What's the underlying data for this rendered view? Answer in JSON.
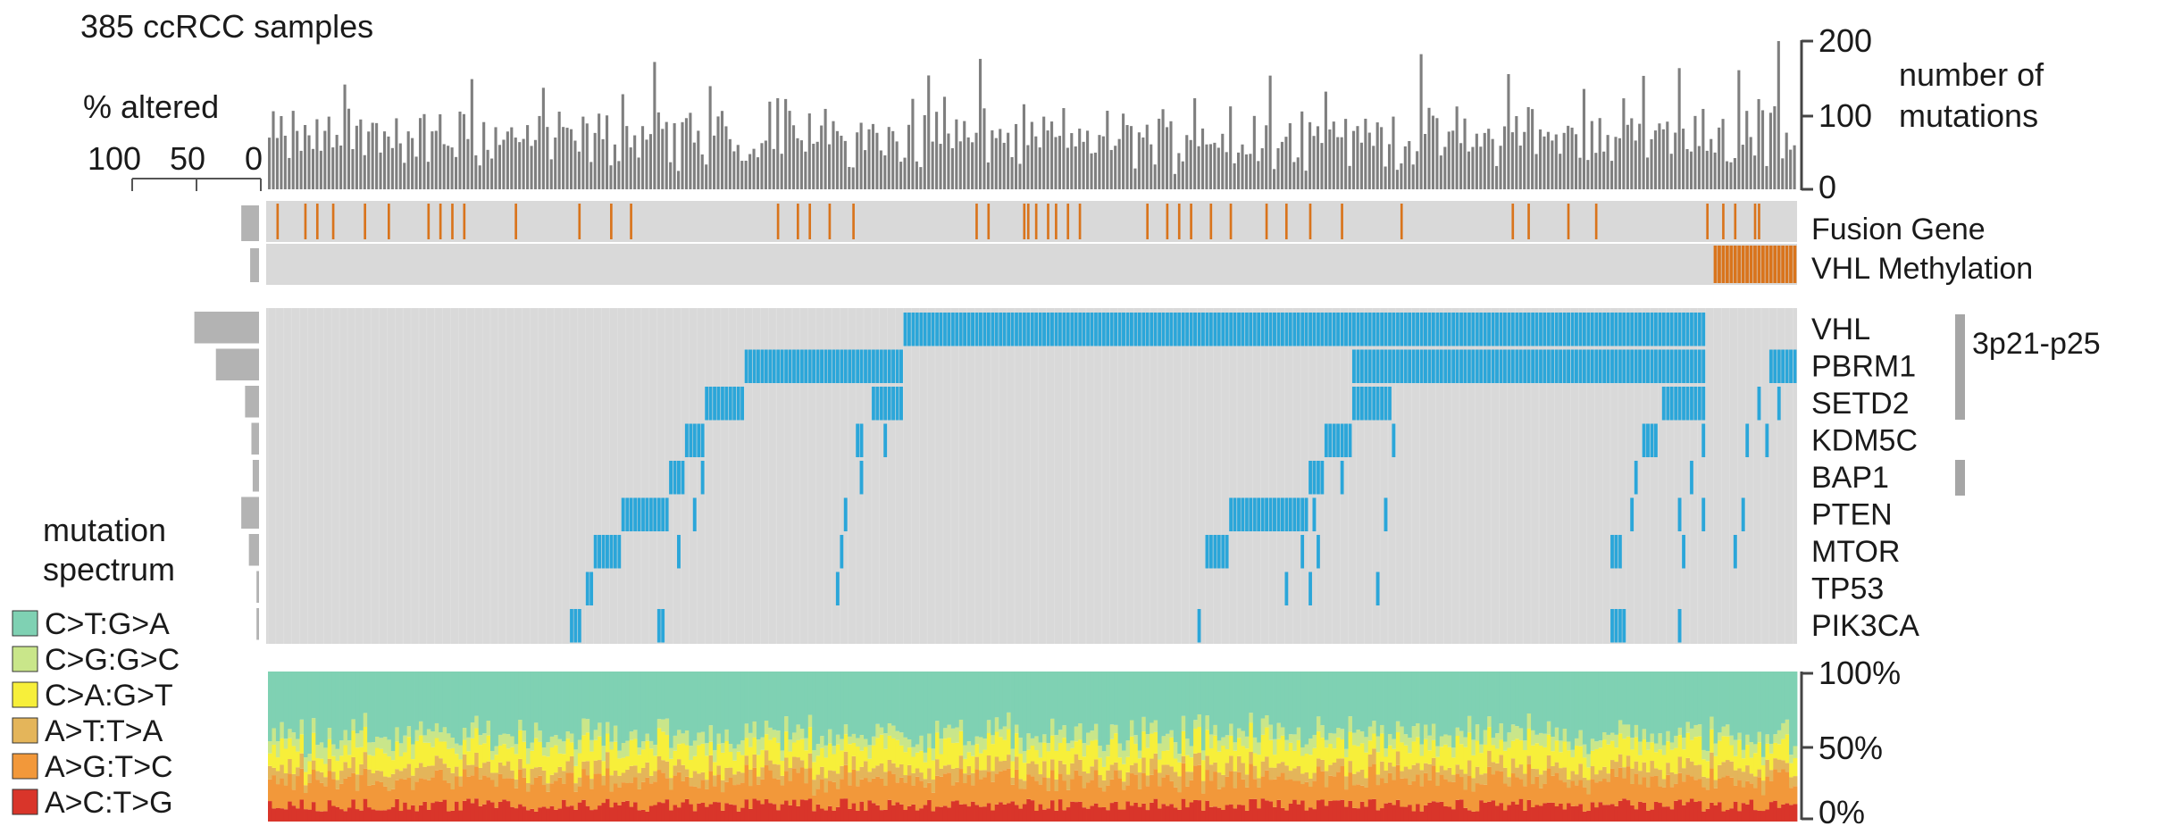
{
  "chart_data": [
    {
      "type": "bar",
      "title": "385 ccRCC samples",
      "ylabel": "number of mutations",
      "n_samples": 385,
      "ylim": [
        0,
        200
      ],
      "yticks": [
        "200",
        "100",
        "0"
      ],
      "summary_values": {
        "typical_min": 20,
        "typical_max": 140,
        "peak": 200
      },
      "bar_color": "#7f7f7f"
    },
    {
      "type": "heatmap",
      "title": "",
      "row_labels": [
        "Fusion Gene",
        "VHL Methylation",
        "VHL",
        "PBRM1",
        "SETD2",
        "KDM5C",
        "BAP1",
        "PTEN",
        "MTOR",
        "TP53",
        "PIK3CA"
      ],
      "percent_altered_axis": {
        "label": "% altered",
        "ticks": [
          "100",
          "50",
          "0"
        ]
      },
      "percent_altered": {
        "Fusion Gene": 14,
        "VHL Methylation": 7,
        "VHL": 51,
        "PBRM1": 34,
        "SETD2": 11,
        "KDM5C": 6,
        "BAP1": 5,
        "PTEN": 14,
        "MTOR": 8,
        "TP53": 2,
        "PIK3CA": 2
      },
      "cytoband_label": "3p21-p25",
      "colors": {
        "background": "#d9d9d9",
        "mutation": "#2ba6d9",
        "fusion": "#d9741c",
        "side_bar": "#b3b3b3",
        "cytoband": "#a6a6a6"
      }
    },
    {
      "type": "bar",
      "title": "",
      "legend_title": "mutation spectrum",
      "stacked": true,
      "ylim": [
        0,
        100
      ],
      "yticks": [
        "100%",
        "50%",
        "0%"
      ],
      "legend_position": "bottom-left",
      "series": [
        {
          "name": "C>T:G>A",
          "color": "#7fd1b3",
          "mean_fraction": 0.42
        },
        {
          "name": "C>G:G>C",
          "color": "#c9e68a",
          "mean_fraction": 0.08
        },
        {
          "name": "C>A:G>T",
          "color": "#f7ef3a",
          "mean_fraction": 0.14
        },
        {
          "name": "A>T:T>A",
          "color": "#e4b55a",
          "mean_fraction": 0.08
        },
        {
          "name": "A>G:T>C",
          "color": "#f2983a",
          "mean_fraction": 0.17
        },
        {
          "name": "A>C:T>G",
          "color": "#d9352a",
          "mean_fraction": 0.11
        }
      ]
    }
  ],
  "labels": {
    "title": "385 ccRCC samples",
    "pct_altered": "% altered",
    "pct_ticks": [
      "100",
      "50",
      "0"
    ],
    "mut_axis_label_1": "number of",
    "mut_axis_label_2": "mutations",
    "mut_ticks": [
      "200",
      "100",
      "0"
    ],
    "spectrum_title_1": "mutation",
    "spectrum_title_2": "spectrum",
    "spectrum_ticks": [
      "100%",
      "50%",
      "0%"
    ],
    "cytoband": "3p21-p25"
  }
}
